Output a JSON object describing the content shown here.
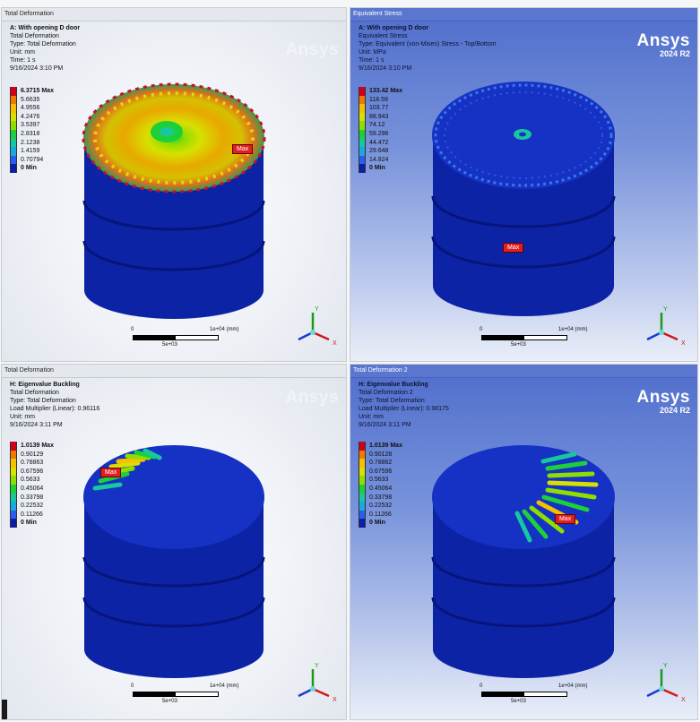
{
  "brand": {
    "name": "Ansys",
    "version": "2024 R2"
  },
  "panels": [
    {
      "title": "Total Deformation",
      "info": [
        "A: With opening D door",
        "Total Deformation",
        "Type: Total Deformation",
        "Unit: mm",
        "Time: 1 s",
        "9/16/2024 3:10 PM"
      ],
      "legend": [
        "6.3715 Max",
        "5.6635",
        "4.9556",
        "4.2476",
        "3.5397",
        "2.8318",
        "2.1238",
        "1.4159",
        "0.70794",
        "0 Min"
      ],
      "max_label": "Max",
      "scale": {
        "zero": "0",
        "end": "1e+04 (mm)",
        "mid": "5e+03"
      }
    },
    {
      "title": "Equivalent Stress",
      "info": [
        "A: With opening D door",
        "Equivalent Stress",
        "Type: Equivalent (von-Mises) Stress - Top/Bottom",
        "Unit: MPa",
        "Time: 1 s",
        "9/16/2024 3:10 PM"
      ],
      "legend": [
        "133.42 Max",
        "118.59",
        "103.77",
        "88.943",
        "74.12",
        "59.296",
        "44.472",
        "29.648",
        "14.824",
        "0 Min"
      ],
      "max_label": "Max",
      "scale": {
        "zero": "0",
        "end": "1e+04 (mm)",
        "mid": "5e+03"
      }
    },
    {
      "title": "Total Deformation",
      "info": [
        "H: Eigenvalue Buckling",
        "Total Deformation",
        "Type: Total Deformation",
        "Load Multiplier (Linear): 0.96116",
        "Unit: mm",
        "9/16/2024 3:11 PM"
      ],
      "legend": [
        "1.0139 Max",
        "0.90129",
        "0.78863",
        "0.67596",
        "0.5633",
        "0.45064",
        "0.33798",
        "0.22532",
        "0.11266",
        "0 Min"
      ],
      "max_label": "Max",
      "scale": {
        "zero": "0",
        "end": "1e+04 (mm)",
        "mid": "5e+03"
      }
    },
    {
      "title": "Total Deformation 2",
      "info": [
        "H: Eigenvalue Buckling",
        "Total Deformation 2",
        "Type: Total Deformation",
        "Load Multiplier (Linear): 0.98175",
        "Unit: mm",
        "9/16/2024 3:11 PM"
      ],
      "legend": [
        "1.0139 Max",
        "0.90128",
        "0.78862",
        "0.67596",
        "0.5633",
        "0.45064",
        "0.33798",
        "0.22532",
        "0.11266",
        "0 Min"
      ],
      "max_label": "Max",
      "scale": {
        "zero": "0",
        "end": "1e+04 (mm)",
        "mid": "5e+03"
      }
    }
  ],
  "triad": {
    "x": "X",
    "y": "Y",
    "z": "Z"
  },
  "legend_colors": [
    "#d1001a",
    "#f07a00",
    "#f5c000",
    "#d7e000",
    "#8ede00",
    "#1fcf3a",
    "#18c7a0",
    "#1aa8e0",
    "#2a5cf0",
    "#0a1ea8"
  ]
}
